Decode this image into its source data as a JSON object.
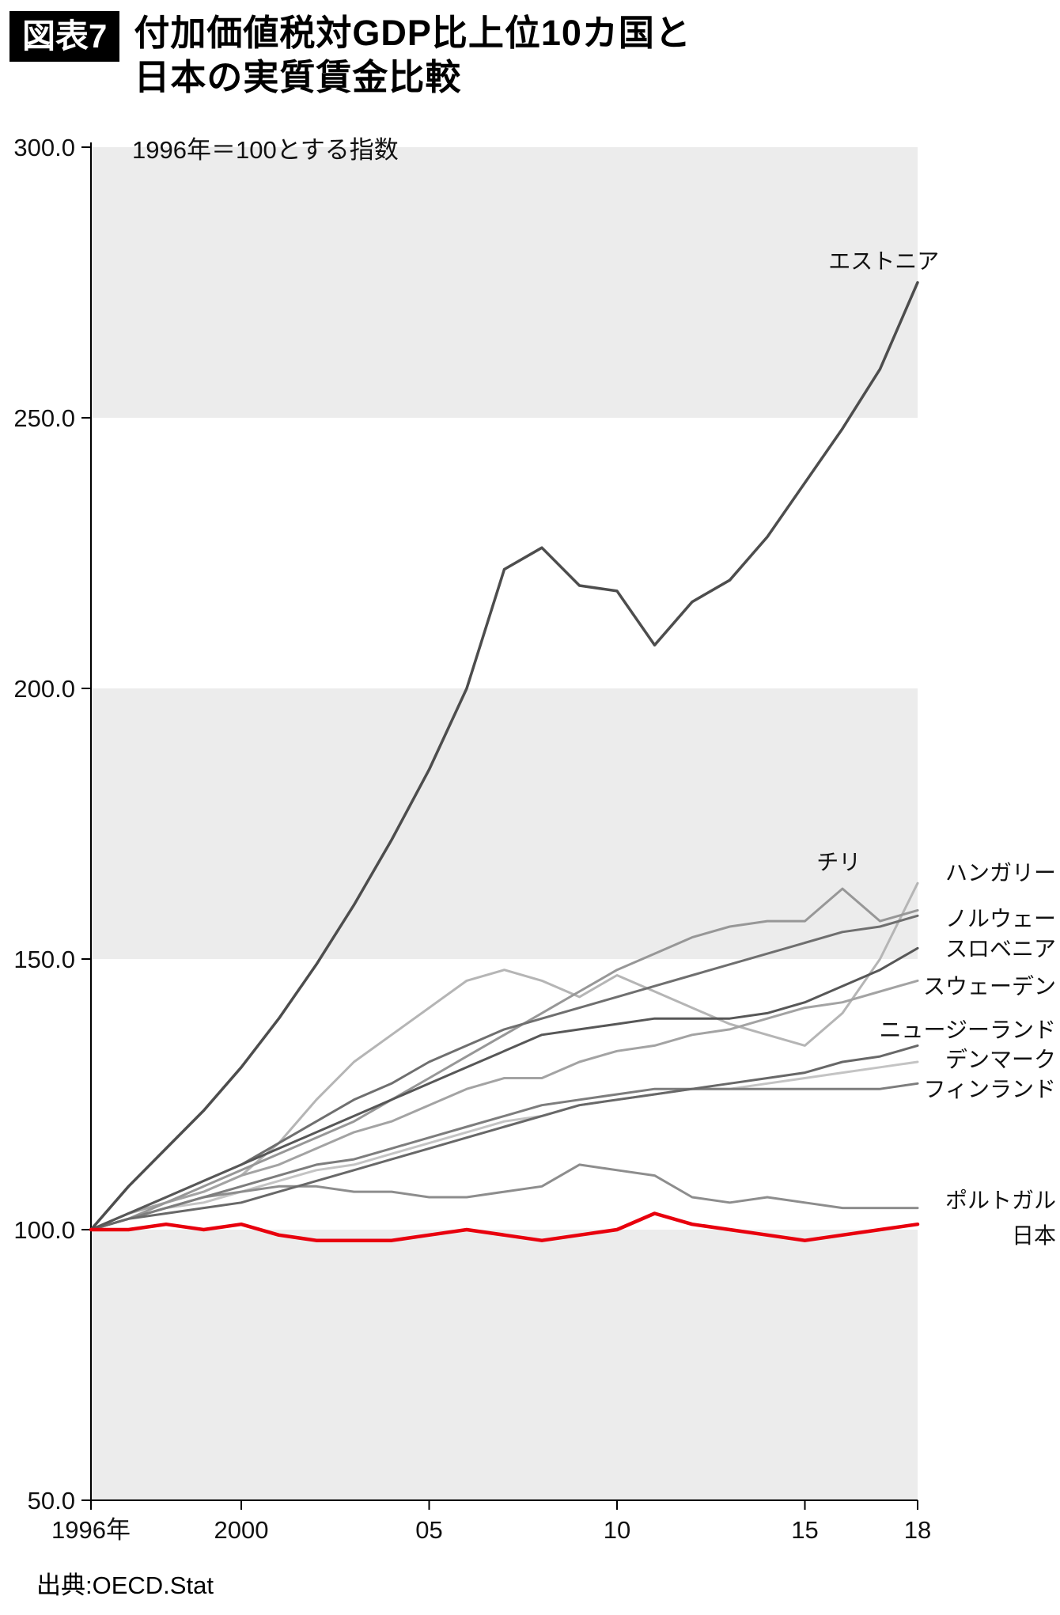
{
  "header": {
    "badge": "図表7",
    "title_line1": "付加価値税対GDP比上位10カ国と",
    "title_line2": "日本の実質賃金比較"
  },
  "source": "出典:OECD.Stat",
  "chart_data": {
    "type": "line",
    "annotation": "1996年＝100とする指数",
    "x_start": 1996,
    "x_end": 2018,
    "ylim": [
      50,
      300
    ],
    "band_color": "#ececec",
    "shaded_bands": [
      [
        300,
        250
      ],
      [
        200,
        150
      ],
      [
        100,
        50
      ]
    ],
    "y_ticks": [
      {
        "value": 300,
        "label": "300.0"
      },
      {
        "value": 250,
        "label": "250.0"
      },
      {
        "value": 200,
        "label": "200.0"
      },
      {
        "value": 150,
        "label": "150.0"
      },
      {
        "value": 100,
        "label": "100.0"
      },
      {
        "value": 50,
        "label": "50.0"
      }
    ],
    "x_ticks": [
      {
        "year": 1996,
        "label": "1996年"
      },
      {
        "year": 2000,
        "label": "2000"
      },
      {
        "year": 2005,
        "label": "05"
      },
      {
        "year": 2010,
        "label": "10"
      },
      {
        "year": 2015,
        "label": "15"
      },
      {
        "year": 2018,
        "label": "18"
      }
    ],
    "series": [
      {
        "name": "デンマーク",
        "color": "#c4c4c4",
        "width": 3,
        "values": [
          100,
          102,
          104,
          105,
          107,
          109,
          111,
          112,
          114,
          116,
          118,
          120,
          121,
          123,
          124,
          125,
          126,
          126,
          127,
          128,
          129,
          130,
          131
        ],
        "label": {
          "align": "right",
          "value": 131.5
        }
      },
      {
        "name": "ハンガリー",
        "color": "#b5b5b5",
        "width": 3,
        "values": [
          100,
          103,
          105,
          107,
          110,
          116,
          124,
          131,
          136,
          141,
          146,
          148,
          146,
          143,
          147,
          144,
          141,
          138,
          136,
          134,
          140,
          150,
          164
        ],
        "label": {
          "align": "right",
          "value": 166
        }
      },
      {
        "name": "スウェーデン",
        "color": "#a3a3a3",
        "width": 3,
        "values": [
          100,
          103,
          105,
          107,
          110,
          112,
          115,
          118,
          120,
          123,
          126,
          128,
          128,
          131,
          133,
          134,
          136,
          137,
          139,
          141,
          142,
          144,
          146
        ],
        "label": {
          "align": "right",
          "value": 145
        }
      },
      {
        "name": "チリ",
        "color": "#979797",
        "width": 3,
        "values": [
          100,
          102,
          105,
          108,
          111,
          114,
          117,
          120,
          124,
          128,
          132,
          136,
          140,
          144,
          148,
          151,
          154,
          156,
          157,
          157,
          163,
          157,
          159
        ],
        "label": {
          "align": "middle",
          "year": 2015.9,
          "value": 168
        }
      },
      {
        "name": "ポルトガル",
        "color": "#8d8d8d",
        "width": 3,
        "values": [
          100,
          102,
          104,
          106,
          107,
          108,
          108,
          107,
          107,
          106,
          106,
          107,
          108,
          112,
          111,
          110,
          106,
          105,
          106,
          105,
          104,
          104,
          104
        ],
        "label": {
          "align": "right",
          "value": 105.5
        }
      },
      {
        "name": "フィンランド",
        "color": "#7d7d7d",
        "width": 3,
        "values": [
          100,
          102,
          104,
          106,
          108,
          110,
          112,
          113,
          115,
          117,
          119,
          121,
          123,
          124,
          125,
          126,
          126,
          126,
          126,
          126,
          126,
          126,
          127
        ],
        "label": {
          "align": "right",
          "value": 126
        }
      },
      {
        "name": "ノルウェー",
        "color": "#6f6f6f",
        "width": 3,
        "values": [
          100,
          103,
          106,
          109,
          112,
          116,
          120,
          124,
          127,
          131,
          134,
          137,
          139,
          141,
          143,
          145,
          147,
          149,
          151,
          153,
          155,
          156,
          158
        ],
        "label": {
          "align": "right",
          "value": 157.5
        }
      },
      {
        "name": "ニュージーランド",
        "color": "#686868",
        "width": 3,
        "values": [
          100,
          102,
          103,
          104,
          105,
          107,
          109,
          111,
          113,
          115,
          117,
          119,
          121,
          123,
          124,
          125,
          126,
          127,
          128,
          129,
          131,
          132,
          134
        ],
        "label": {
          "align": "right",
          "value": 137
        }
      },
      {
        "name": "スロベニア",
        "color": "#575757",
        "width": 3,
        "values": [
          100,
          103,
          106,
          109,
          112,
          115,
          118,
          121,
          124,
          127,
          130,
          133,
          136,
          137,
          138,
          139,
          139,
          139,
          140,
          142,
          145,
          148,
          152
        ],
        "label": {
          "align": "right",
          "value": 152
        }
      },
      {
        "name": "エストニア",
        "color": "#4d4d4d",
        "width": 3.5,
        "values": [
          100,
          108,
          115,
          122,
          130,
          139,
          149,
          160,
          172,
          185,
          200,
          222,
          226,
          219,
          218,
          208,
          216,
          220,
          228,
          238,
          248,
          259,
          275
        ],
        "label": {
          "align": "middle",
          "year": 2017.1,
          "value": 279
        }
      },
      {
        "name": "日本",
        "color": "#e8000d",
        "width": 4.5,
        "values": [
          100,
          100,
          101,
          100,
          101,
          99,
          98,
          98,
          98,
          99,
          100,
          99,
          98,
          99,
          100,
          103,
          101,
          100,
          99,
          98,
          99,
          100,
          101
        ],
        "label": {
          "align": "right",
          "value": 99
        }
      }
    ]
  }
}
